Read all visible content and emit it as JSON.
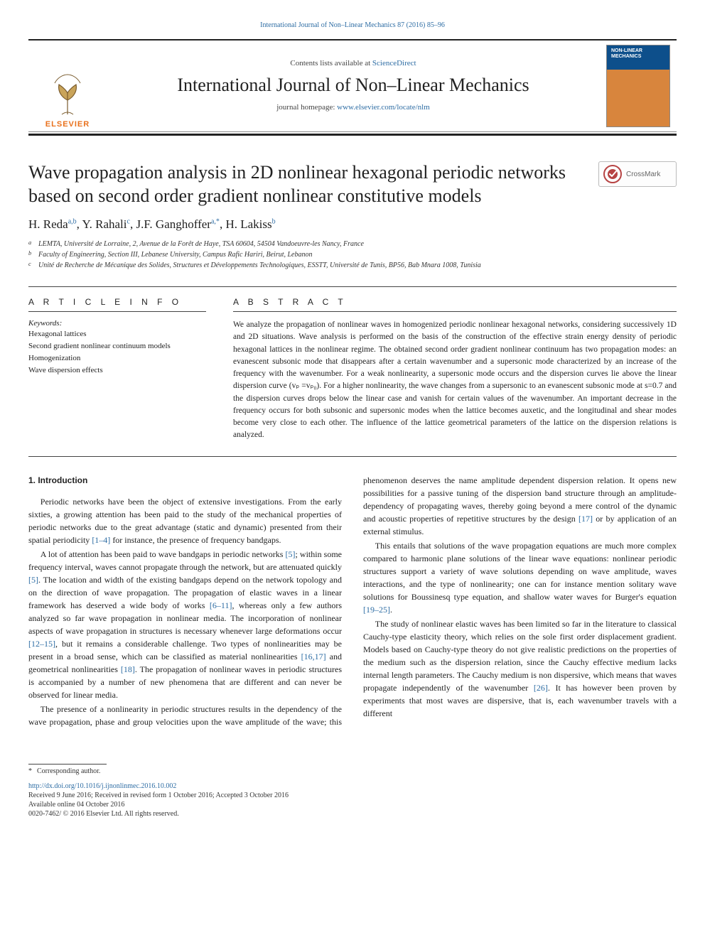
{
  "top_link": {
    "prefix": "",
    "journal": "International Journal of Non–Linear Mechanics 87 (2016) 85–96"
  },
  "masthead": {
    "contents_prefix": "Contents lists available at ",
    "contents_link": "ScienceDirect",
    "journal_name": "International Journal of Non–Linear Mechanics",
    "homepage_prefix": "journal homepage: ",
    "homepage_url": "www.elsevier.com/locate/nlm",
    "publisher": "ELSEVIER",
    "cover_label": "NON-LINEAR MECHANICS"
  },
  "crossmark": {
    "label": "CrossMark"
  },
  "article": {
    "title": "Wave propagation analysis in 2D nonlinear hexagonal periodic networks based on second order gradient nonlinear constitutive models",
    "authors_html_plain": "H. Reda",
    "authors": [
      {
        "name": "H. Reda",
        "sup": "a,b"
      },
      {
        "name": "Y. Rahali",
        "sup": "c"
      },
      {
        "name": "J.F. Ganghoffer",
        "sup": "a,*"
      },
      {
        "name": "H. Lakiss",
        "sup": "b"
      }
    ],
    "affiliations": [
      {
        "marker": "a",
        "text": "LEMTA, Université de Lorraine, 2, Avenue de la Forêt de Haye, TSA 60604, 54504 Vandoeuvre-les Nancy, France"
      },
      {
        "marker": "b",
        "text": "Faculty of Engineering, Section III, Lebanese University, Campus Rafic Hariri, Beirut, Lebanon"
      },
      {
        "marker": "c",
        "text": "Unité de Recherche de Mécanique des Solides, Structures et Développements Technologiques, ESSTT, Université de Tunis, BP56, Bab Mnara 1008, Tunisia"
      }
    ]
  },
  "info": {
    "heading": "A R T I C L E  I N F O",
    "keywords_label": "Keywords:",
    "keywords": [
      "Hexagonal lattices",
      "Second gradient nonlinear continuum models",
      "Homogenization",
      "Wave dispersion effects"
    ]
  },
  "abstract": {
    "heading": "A B S T R A C T",
    "text": "We analyze the propagation of nonlinear waves in homogenized periodic nonlinear hexagonal networks, considering successively 1D and 2D situations. Wave analysis is performed on the basis of the construction of the effective strain energy density of periodic hexagonal lattices in the nonlinear regime. The obtained second order gradient nonlinear continuum has two propagation modes: an evanescent subsonic mode that disappears after a certain wavenumber and a supersonic mode characterized by an increase of the frequency with the wavenumber. For a weak nonlinearity, a supersonic mode occurs and the dispersion curves lie above the linear dispersion curve (vₚ =vₚ₀). For a higher nonlinearity, the wave changes from a supersonic to an evanescent subsonic mode at s=0.7 and the dispersion curves drops below the linear case and vanish for certain values of the wavenumber. An important decrease in the frequency occurs for both subsonic and supersonic modes when the lattice becomes auxetic, and the longitudinal and shear modes become very close to each other. The influence of the lattice geometrical parameters of the lattice on the dispersion relations is analyzed."
  },
  "sections": {
    "intro_heading": "1.  Introduction",
    "p1a": "Periodic networks have been the object of extensive investigations. From the early sixties, a growing attention has been paid to the study of the mechanical properties of periodic networks due to the great advantage (static and dynamic) presented from their spatial periodicity ",
    "p1_ref1": "[1–4]",
    "p1b": " for instance, the presence of frequency bandgaps.",
    "p2a": "A lot of attention has been paid to wave bandgaps in periodic networks ",
    "p2_ref1": "[5]",
    "p2b": "; within some frequency interval, waves cannot propagate through the network, but are attenuated quickly ",
    "p2_ref2": "[5]",
    "p2c": ". The location and width of the existing bandgaps depend on the network topology and on the direction of wave propagation. The propagation of elastic waves in a linear framework has deserved a wide body of works ",
    "p2_ref3": "[6–11]",
    "p2d": ", whereas only a few authors analyzed so far wave propagation in nonlinear media. The incorporation of nonlinear aspects of wave propagation in structures is necessary whenever large deformations occur ",
    "p2_ref4": "[12–15]",
    "p2e": ", but it remains a considerable challenge. Two types of nonlinearities may be present in a broad sense, which can be classified as material nonlinearities ",
    "p2_ref5": "[16,17]",
    "p2f": " and geometrical nonlinearities ",
    "p2_ref6": "[18]",
    "p2g": ". The propagation of nonlinear waves in periodic structures is accompanied by a number of new phenomena that are different and can never be observed for linear media.",
    "p3a": "The presence of a nonlinearity in periodic structures results in the dependency of the wave propagation, phase and group velocities upon the wave amplitude of the wave; this phenomenon deserves the name amplitude dependent dispersion relation. It opens new possibilities for a passive tuning of the dispersion band structure through an amplitude-dependency of propagating waves, thereby going beyond a mere control of the dynamic and acoustic properties of repetitive structures by the design ",
    "p3_ref1": "[17]",
    "p3b": " or by application of an external stimulus.",
    "p4a": "This entails that solutions of the wave propagation equations are much more complex compared to harmonic plane solutions of the linear wave equations: nonlinear periodic structures support a variety of wave solutions depending on wave amplitude, waves interactions, and the type of nonlinearity; one can for instance mention solitary wave solutions for Boussinesq type equation, and shallow water waves for Burger's equation ",
    "p4_ref1": "[19–25]",
    "p4b": ".",
    "p5a": "The study of nonlinear elastic waves has been limited so far in the literature to classical Cauchy-type elasticity theory, which relies on the sole first order displacement gradient. Models based on Cauchy-type theory do not give realistic predictions on the properties of the medium such as the dispersion relation, since the Cauchy effective medium lacks internal length parameters. The Cauchy medium is non dispersive, which means that waves propagate independently of the wavenumber ",
    "p5_ref1": "[26]",
    "p5b": ". It has however been proven by experiments that most waves are dispersive, that is, each wavenumber travels with a different"
  },
  "footer": {
    "footnote_marker": "*",
    "footnote_text": "Corresponding author.",
    "doi": "http://dx.doi.org/10.1016/j.ijnonlinmec.2016.10.002",
    "history": "Received 9 June 2016; Received in revised form 1 October 2016; Accepted 3 October 2016",
    "available": "Available online 04 October 2016",
    "copyright": "0020-7462/ © 2016 Elsevier Ltd. All rights reserved."
  },
  "colors": {
    "link": "#2e6da4",
    "accent_orange": "#e9711c",
    "rule": "#222222",
    "text": "#222222"
  }
}
